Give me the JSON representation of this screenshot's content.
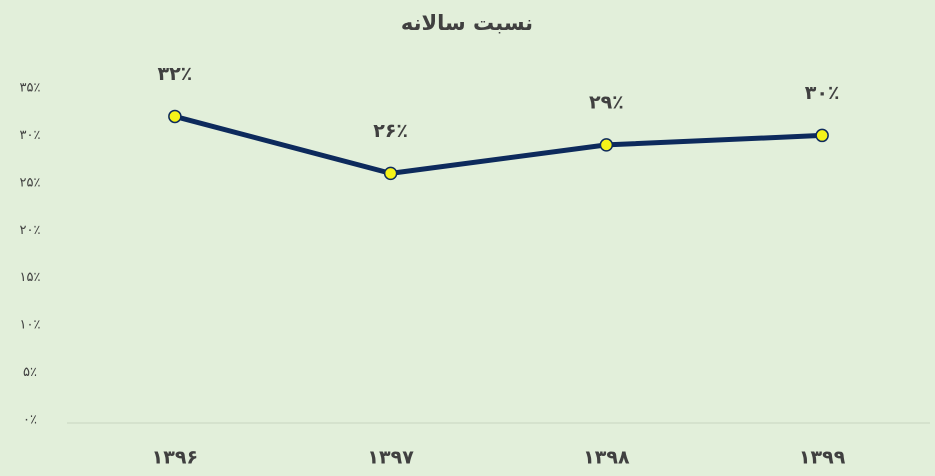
{
  "chart_data": {
    "type": "line",
    "title": "نسبت سالانه",
    "categories": [
      "۱۳۹۶",
      "۱۳۹۷",
      "۱۳۹۸",
      "۱۳۹۹"
    ],
    "series": [
      {
        "name": "نسبت سالانه",
        "color": "#0d2a5c",
        "marker_color": "#f5f219",
        "values": [
          32,
          26,
          29,
          30
        ],
        "value_labels": [
          "۳۲٪",
          "۲۶٪",
          "۲۹٪",
          "۳۰٪"
        ]
      }
    ],
    "ylim": [
      0,
      35
    ],
    "yticks": [
      {
        "value": 0,
        "label": "۰٪"
      },
      {
        "value": 5,
        "label": "۵٪"
      },
      {
        "value": 10,
        "label": "۱۰٪"
      },
      {
        "value": 15,
        "label": "۱۵٪"
      },
      {
        "value": 20,
        "label": "۲۰٪"
      },
      {
        "value": 25,
        "label": "۲۵٪"
      },
      {
        "value": 30,
        "label": "۳۰٪"
      },
      {
        "value": 35,
        "label": "۳۵٪"
      }
    ],
    "grid": false
  }
}
